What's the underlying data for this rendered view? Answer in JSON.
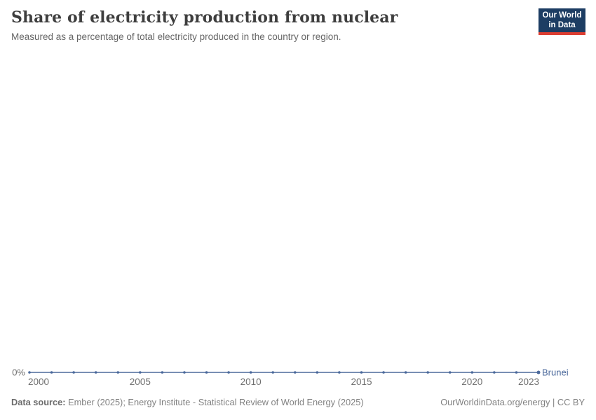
{
  "header": {
    "title": "Share of electricity production from nuclear",
    "subtitle": "Measured as a percentage of total electricity produced in the country or region."
  },
  "logo": {
    "line1": "Our World",
    "line2": "in Data",
    "bg_color": "#1d3d63",
    "accent_color": "#dc3e32"
  },
  "chart_data": {
    "type": "line",
    "title": "Share of electricity production from nuclear",
    "x": [
      2000,
      2001,
      2002,
      2003,
      2004,
      2005,
      2006,
      2007,
      2008,
      2009,
      2010,
      2011,
      2012,
      2013,
      2014,
      2015,
      2016,
      2017,
      2018,
      2019,
      2020,
      2021,
      2022,
      2023
    ],
    "series": [
      {
        "name": "Brunei",
        "color": "#4C6A9C",
        "values": [
          0,
          0,
          0,
          0,
          0,
          0,
          0,
          0,
          0,
          0,
          0,
          0,
          0,
          0,
          0,
          0,
          0,
          0,
          0,
          0,
          0,
          0,
          0,
          0
        ]
      }
    ],
    "x_ticks": [
      2000,
      2005,
      2010,
      2015,
      2020,
      2023
    ],
    "y_ticks": [
      0
    ],
    "y_tick_labels": [
      "0%"
    ],
    "ylabel": "",
    "xlabel": "",
    "grid": false,
    "legend_position": "line-end-label",
    "axis_text_color": "#6e6e6e"
  },
  "footer": {
    "source_label": "Data source:",
    "source_text": " Ember (2025); Energy Institute - Statistical Review of World Energy (2025)",
    "credit": "OurWorldinData.org/energy | CC BY"
  }
}
